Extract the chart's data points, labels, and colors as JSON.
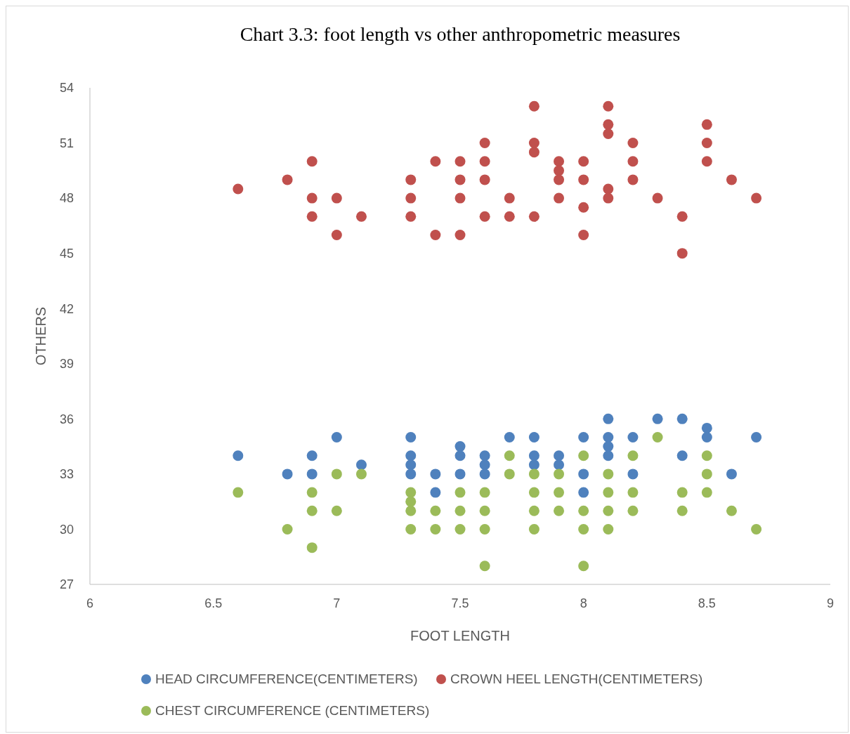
{
  "chart_data": {
    "type": "scatter",
    "title": "Chart 3.3: foot length vs other anthropometric measures",
    "xlabel": "FOOT LENGTH",
    "ylabel": "OTHERS",
    "xlim": [
      6,
      9
    ],
    "xticks": [
      6,
      6.5,
      7,
      7.5,
      8,
      8.5,
      9
    ],
    "ylim": [
      27,
      54
    ],
    "yticks": [
      27,
      30,
      33,
      36,
      39,
      42,
      45,
      48,
      51,
      54
    ],
    "grid": false,
    "legend": "bottom",
    "marker": "circle",
    "series": [
      {
        "name": "HEAD CIRCUMFERENCE(CENTIMETERS)",
        "color": "#4f81bd",
        "x": [
          6.6,
          6.8,
          6.9,
          6.9,
          7.0,
          7.1,
          7.3,
          7.3,
          7.3,
          7.3,
          7.4,
          7.4,
          7.5,
          7.5,
          7.5,
          7.6,
          7.6,
          7.6,
          7.7,
          7.8,
          7.8,
          7.8,
          7.9,
          7.9,
          8.0,
          8.0,
          8.0,
          8.1,
          8.1,
          8.1,
          8.1,
          8.2,
          8.2,
          8.3,
          8.4,
          8.4,
          8.5,
          8.5,
          8.6,
          8.7
        ],
        "values": [
          34,
          33,
          34,
          33,
          35,
          33.5,
          35,
          34,
          33.5,
          33,
          33,
          32,
          34.5,
          34,
          33,
          34,
          33.5,
          33,
          35,
          35,
          34,
          33.5,
          34,
          33.5,
          35,
          33,
          32,
          36,
          35,
          34.5,
          34,
          35,
          33,
          36,
          36,
          34,
          35.5,
          35,
          33,
          35
        ]
      },
      {
        "name": "CROWN HEEL LENGTH(CENTIMETERS)",
        "color": "#c0504d",
        "x": [
          6.6,
          6.8,
          6.9,
          6.9,
          6.9,
          7.0,
          7.0,
          7.1,
          7.3,
          7.3,
          7.3,
          7.4,
          7.4,
          7.5,
          7.5,
          7.5,
          7.5,
          7.6,
          7.6,
          7.6,
          7.6,
          7.7,
          7.7,
          7.8,
          7.8,
          7.8,
          7.8,
          7.9,
          7.9,
          7.9,
          7.9,
          8.0,
          8.0,
          8.0,
          8.0,
          8.1,
          8.1,
          8.1,
          8.1,
          8.1,
          8.2,
          8.2,
          8.2,
          8.3,
          8.4,
          8.4,
          8.5,
          8.5,
          8.5,
          8.6,
          8.7
        ],
        "values": [
          48.5,
          49,
          50,
          48,
          47,
          48,
          46,
          47,
          49,
          48,
          47,
          50,
          46,
          50,
          49,
          48,
          46,
          51,
          50,
          49,
          47,
          48,
          47,
          53,
          51,
          50.5,
          47,
          50,
          49.5,
          49,
          48,
          50,
          49,
          47.5,
          46,
          53,
          52,
          51.5,
          48.5,
          48,
          51,
          50,
          49,
          48,
          47,
          45,
          52,
          51,
          50,
          49,
          48
        ]
      },
      {
        "name": "CHEST CIRCUMFERENCE (CENTIMETERS)",
        "color": "#9bbb59",
        "x": [
          6.6,
          6.8,
          6.9,
          6.9,
          6.9,
          7.0,
          7.0,
          7.1,
          7.3,
          7.3,
          7.3,
          7.3,
          7.4,
          7.4,
          7.5,
          7.5,
          7.5,
          7.6,
          7.6,
          7.6,
          7.6,
          7.7,
          7.7,
          7.8,
          7.8,
          7.8,
          7.8,
          7.9,
          7.9,
          7.9,
          8.0,
          8.0,
          8.0,
          8.0,
          8.1,
          8.1,
          8.1,
          8.1,
          8.2,
          8.2,
          8.2,
          8.3,
          8.4,
          8.4,
          8.5,
          8.5,
          8.5,
          8.6,
          8.7
        ],
        "values": [
          32,
          30,
          32,
          31,
          29,
          33,
          31,
          33,
          32,
          31.5,
          31,
          30,
          31,
          30,
          32,
          31,
          30,
          32,
          31,
          30,
          28,
          34,
          33,
          33,
          32,
          31,
          30,
          33,
          32,
          31,
          34,
          31,
          30,
          28,
          33,
          32,
          31,
          30,
          34,
          32,
          31,
          35,
          32,
          31,
          34,
          33,
          32,
          31,
          30
        ]
      }
    ]
  }
}
